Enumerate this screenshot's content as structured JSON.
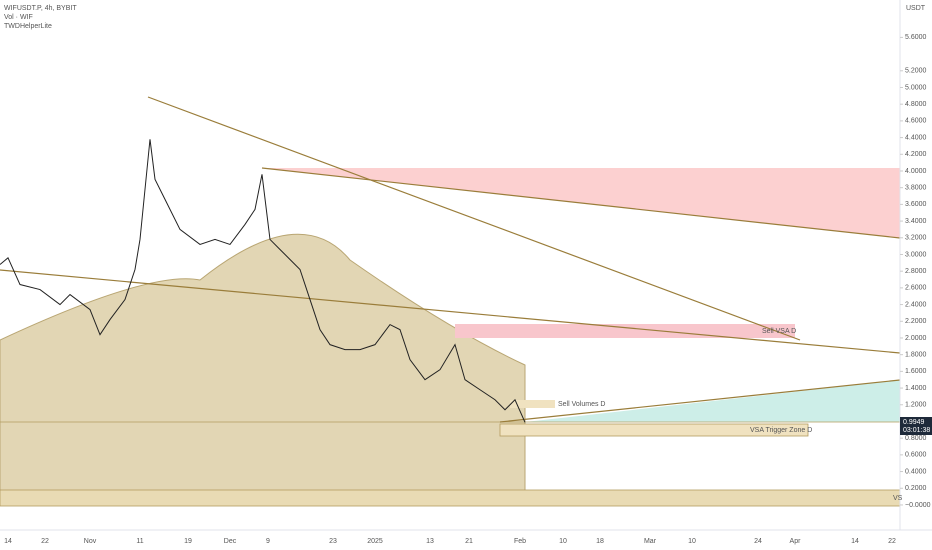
{
  "chart_data": {
    "type": "line",
    "header": {
      "symbol": "WIFUSDT.P, 4h, BYBIT",
      "volume": "Vol · WIF",
      "indicator": "TWDHelperLite"
    },
    "currency": "USDT",
    "ylim": [
      -0.3,
      6.0
    ],
    "yticks": [
      {
        "value": 5.6,
        "label": "5.6000"
      },
      {
        "value": 5.2,
        "label": "5.2000"
      },
      {
        "value": 5.0,
        "label": "5.0000"
      },
      {
        "value": 4.8,
        "label": "4.8000"
      },
      {
        "value": 4.6,
        "label": "4.6000"
      },
      {
        "value": 4.4,
        "label": "4.4000"
      },
      {
        "value": 4.2,
        "label": "4.2000"
      },
      {
        "value": 4.0,
        "label": "4.0000"
      },
      {
        "value": 3.8,
        "label": "3.8000"
      },
      {
        "value": 3.6,
        "label": "3.6000"
      },
      {
        "value": 3.4,
        "label": "3.4000"
      },
      {
        "value": 3.2,
        "label": "3.2000"
      },
      {
        "value": 3.0,
        "label": "3.0000"
      },
      {
        "value": 2.8,
        "label": "2.8000"
      },
      {
        "value": 2.6,
        "label": "2.6000"
      },
      {
        "value": 2.4,
        "label": "2.4000"
      },
      {
        "value": 2.2,
        "label": "2.2000"
      },
      {
        "value": 2.0,
        "label": "2.0000"
      },
      {
        "value": 1.8,
        "label": "1.8000"
      },
      {
        "value": 1.6,
        "label": "1.6000"
      },
      {
        "value": 1.4,
        "label": "1.4000"
      },
      {
        "value": 1.2,
        "label": "1.2000"
      },
      {
        "value": 0.8,
        "label": "0.8000"
      },
      {
        "value": 0.6,
        "label": "0.6000"
      },
      {
        "value": 0.4,
        "label": "0.4000"
      },
      {
        "value": 0.2,
        "label": "0.2000"
      },
      {
        "value": 0,
        "label": "−0.0000"
      }
    ],
    "time_labels": [
      "14",
      "22",
      "Nov",
      "11",
      "19",
      "Dec",
      "9",
      "23",
      "2025",
      "13",
      "21",
      "Feb",
      "10",
      "18",
      "Mar",
      "10",
      "24",
      "Apr",
      "14",
      "22"
    ],
    "values": [
      2.88,
      2.96,
      2.64,
      2.58,
      2.4,
      2.52,
      2.34,
      2.04,
      2.22,
      2.46,
      2.82,
      3.18,
      4.38,
      3.9,
      3.66,
      3.3,
      3.12,
      3.18,
      3.12,
      3.36,
      3.54,
      3.96,
      3.18,
      3.06,
      2.94,
      2.82,
      2.46,
      2.1,
      1.92,
      1.86,
      1.86,
      1.92,
      2.16,
      2.1,
      1.74,
      1.5,
      1.62,
      1.92,
      1.5,
      1.38,
      1.26,
      1.14,
      1.26,
      0.99
    ],
    "color": "#222222",
    "last_price": {
      "value": 0.9949,
      "label": "0.9949",
      "countdown": "03:01:38"
    },
    "zones": [
      "Sell VSA D",
      "Sell Volumes D",
      "VSA Trigger Zone D",
      "VS"
    ]
  }
}
